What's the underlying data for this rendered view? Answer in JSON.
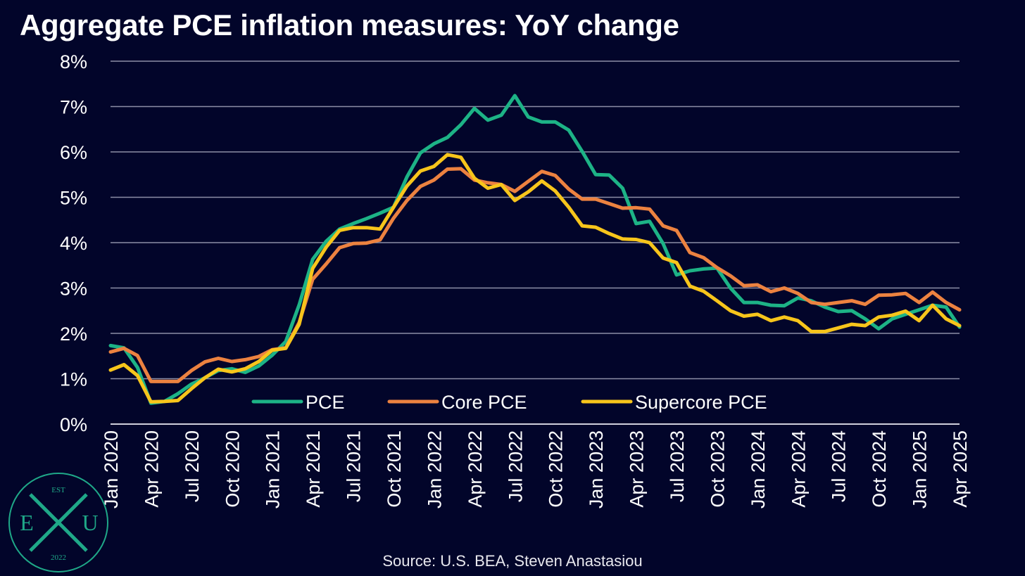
{
  "title": "Aggregate PCE inflation measures: YoY change",
  "source": "Source: U.S. BEA, Steven Anastasiou",
  "logo": {
    "top": "EST",
    "left": "E",
    "right": "U",
    "bottom": "2022"
  },
  "colors": {
    "background": "#02052a",
    "grid": "#8c8ea6",
    "pce": "#1db386",
    "core": "#ec8240",
    "supercore": "#f7c51b",
    "logo": "#1fa888"
  },
  "chart_data": {
    "type": "line",
    "title": "Aggregate PCE inflation measures: YoY change",
    "xlabel": "",
    "ylabel": "",
    "ylim": [
      0,
      8
    ],
    "yticks": [
      "0%",
      "1%",
      "2%",
      "3%",
      "4%",
      "5%",
      "6%",
      "7%",
      "8%"
    ],
    "grid": true,
    "legend_position": "inside-bottom-left",
    "x": [
      "Jan 2020",
      "Feb 2020",
      "Mar 2020",
      "Apr 2020",
      "May 2020",
      "Jun 2020",
      "Jul 2020",
      "Aug 2020",
      "Sep 2020",
      "Oct 2020",
      "Nov 2020",
      "Dec 2020",
      "Jan 2021",
      "Feb 2021",
      "Mar 2021",
      "Apr 2021",
      "May 2021",
      "Jun 2021",
      "Jul 2021",
      "Aug 2021",
      "Sep 2021",
      "Oct 2021",
      "Nov 2021",
      "Dec 2021",
      "Jan 2022",
      "Feb 2022",
      "Mar 2022",
      "Apr 2022",
      "May 2022",
      "Jun 2022",
      "Jul 2022",
      "Aug 2022",
      "Sep 2022",
      "Oct 2022",
      "Nov 2022",
      "Dec 2022",
      "Jan 2023",
      "Feb 2023",
      "Mar 2023",
      "Apr 2023",
      "May 2023",
      "Jun 2023",
      "Jul 2023",
      "Aug 2023",
      "Sep 2023",
      "Oct 2023",
      "Nov 2023",
      "Dec 2023",
      "Jan 2024",
      "Feb 2024",
      "Mar 2024",
      "Apr 2024",
      "May 2024",
      "Jun 2024",
      "Jul 2024",
      "Aug 2024",
      "Sep 2024",
      "Oct 2024",
      "Nov 2024",
      "Dec 2024",
      "Jan 2025",
      "Feb 2025",
      "Mar 2025",
      "Apr 2025"
    ],
    "xtick_labels": [
      "Jan 2020",
      "Apr 2020",
      "Jul 2020",
      "Oct 2020",
      "Jan 2021",
      "Apr 2021",
      "Jul 2021",
      "Oct 2021",
      "Jan 2022",
      "Apr 2022",
      "Jul 2022",
      "Oct 2022",
      "Jan 2023",
      "Apr 2023",
      "Jul 2023",
      "Oct 2023",
      "Jan 2024",
      "Apr 2024",
      "Jul 2024",
      "Oct 2024",
      "Jan 2025",
      "Apr 2025"
    ],
    "series": [
      {
        "name": "PCE",
        "color": "#1db386",
        "values": [
          1.73,
          1.68,
          1.25,
          0.46,
          0.5,
          0.67,
          0.88,
          1.02,
          1.18,
          1.22,
          1.14,
          1.28,
          1.52,
          1.82,
          2.63,
          3.63,
          4.03,
          4.3,
          4.42,
          4.53,
          4.65,
          4.78,
          5.45,
          5.98,
          6.18,
          6.32,
          6.6,
          6.96,
          6.7,
          6.81,
          7.24,
          6.77,
          6.66,
          6.66,
          6.48,
          6.01,
          5.5,
          5.49,
          5.2,
          4.42,
          4.47,
          3.98,
          3.29,
          3.38,
          3.42,
          3.44,
          3.0,
          2.68,
          2.68,
          2.62,
          2.61,
          2.78,
          2.72,
          2.58,
          2.48,
          2.5,
          2.32,
          2.1,
          2.32,
          2.42,
          2.52,
          2.62,
          2.58,
          2.14
        ]
      },
      {
        "name": "Core PCE",
        "color": "#ec8240",
        "values": [
          1.59,
          1.67,
          1.51,
          0.94,
          0.94,
          0.94,
          1.18,
          1.37,
          1.45,
          1.38,
          1.42,
          1.49,
          1.64,
          1.68,
          2.24,
          3.19,
          3.53,
          3.89,
          3.98,
          3.99,
          4.06,
          4.54,
          4.93,
          5.24,
          5.38,
          5.62,
          5.63,
          5.38,
          5.32,
          5.28,
          5.13,
          5.35,
          5.57,
          5.48,
          5.18,
          4.96,
          4.96,
          4.86,
          4.76,
          4.77,
          4.74,
          4.37,
          4.27,
          3.78,
          3.67,
          3.45,
          3.27,
          3.05,
          3.07,
          2.92,
          3.0,
          2.88,
          2.68,
          2.64,
          2.68,
          2.72,
          2.64,
          2.84,
          2.85,
          2.88,
          2.68,
          2.91,
          2.68,
          2.52
        ]
      },
      {
        "name": "Supercore PCE",
        "color": "#f7c51b",
        "values": [
          1.19,
          1.31,
          1.07,
          0.49,
          0.5,
          0.52,
          0.78,
          1.02,
          1.21,
          1.15,
          1.22,
          1.38,
          1.63,
          1.67,
          2.2,
          3.43,
          3.9,
          4.27,
          4.33,
          4.33,
          4.3,
          4.78,
          5.25,
          5.58,
          5.68,
          5.94,
          5.88,
          5.42,
          5.2,
          5.28,
          4.93,
          5.12,
          5.36,
          5.14,
          4.78,
          4.37,
          4.34,
          4.2,
          4.08,
          4.07,
          4.0,
          3.66,
          3.56,
          3.04,
          2.93,
          2.72,
          2.5,
          2.38,
          2.42,
          2.28,
          2.36,
          2.28,
          2.04,
          2.04,
          2.12,
          2.2,
          2.17,
          2.36,
          2.4,
          2.49,
          2.28,
          2.62,
          2.32,
          2.17
        ]
      }
    ]
  }
}
